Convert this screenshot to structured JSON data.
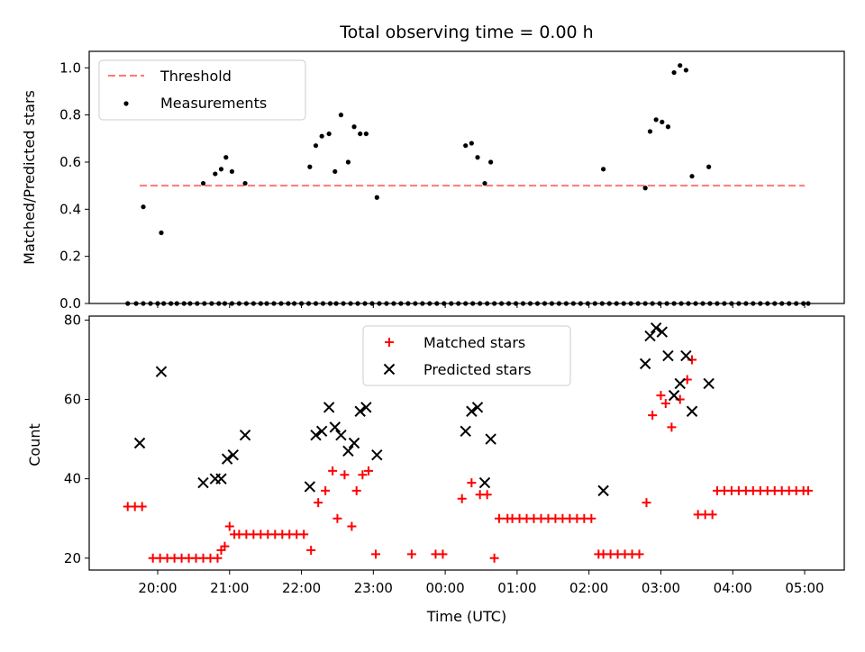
{
  "chart_data": [
    {
      "type": "scatter",
      "title": "Total observing time = 0.00 h",
      "xlabel": "",
      "ylabel": "Matched/Predicted stars",
      "ylim": [
        0,
        1.07
      ],
      "yticks": [
        "0.0",
        "0.2",
        "0.4",
        "0.6",
        "0.8",
        "1.0"
      ],
      "legend": {
        "placement": "top-left",
        "entries": [
          "Threshold",
          "Measurements"
        ]
      },
      "colors": {
        "threshold": "#ff7777",
        "measurements": "#000000"
      },
      "series": [
        {
          "name": "Threshold",
          "kind": "dashed-line",
          "x": [
            "19:45",
            "05:00"
          ],
          "y": [
            0.5,
            0.5
          ]
        },
        {
          "name": "Measurements",
          "kind": "points",
          "x": [
            "19:35",
            "19:42",
            "19:48",
            "19:54",
            "20:00",
            "20:05",
            "20:11",
            "20:16",
            "20:22",
            "20:27",
            "20:33",
            "20:39",
            "20:45",
            "20:51",
            "20:56",
            "21:02",
            "21:08",
            "21:14",
            "21:20",
            "21:26",
            "21:31",
            "21:37",
            "21:43",
            "21:49",
            "21:54",
            "22:00",
            "22:06",
            "22:12",
            "22:18",
            "22:24",
            "22:29",
            "22:35",
            "22:41",
            "22:47",
            "22:53",
            "22:59",
            "23:05",
            "23:11",
            "23:17",
            "23:23",
            "23:29",
            "23:35",
            "23:41",
            "23:47",
            "23:53",
            "23:59",
            "00:05",
            "00:11",
            "00:17",
            "00:23",
            "00:29",
            "00:35",
            "00:41",
            "00:47",
            "00:53",
            "00:59",
            "01:05",
            "01:11",
            "01:17",
            "01:23",
            "01:29",
            "01:35",
            "01:41",
            "01:47",
            "01:53",
            "01:59",
            "02:05",
            "02:11",
            "02:17",
            "02:23",
            "02:29",
            "02:35",
            "02:41",
            "02:47",
            "02:53",
            "02:59",
            "03:05",
            "03:11",
            "03:17",
            "03:23",
            "03:29",
            "03:35",
            "03:41",
            "03:47",
            "03:53",
            "03:59",
            "04:05",
            "04:11",
            "04:17",
            "04:23",
            "04:29",
            "04:35",
            "04:41",
            "04:47",
            "04:53",
            "04:59",
            "05:03",
            "19:48",
            "20:03",
            "20:38",
            "20:48",
            "20:53",
            "20:57",
            "21:02",
            "21:13",
            "22:07",
            "22:12",
            "22:17",
            "22:23",
            "22:28",
            "22:33",
            "22:39",
            "22:44",
            "22:49",
            "22:54",
            "23:03",
            "00:17",
            "00:22",
            "00:27",
            "00:33",
            "00:38",
            "02:12",
            "02:47",
            "02:51",
            "02:56",
            "03:01",
            "03:06",
            "03:11",
            "03:16",
            "03:21",
            "03:26",
            "03:40"
          ],
          "y": [
            0,
            0,
            0,
            0,
            0,
            0,
            0,
            0,
            0,
            0,
            0,
            0,
            0,
            0,
            0,
            0,
            0,
            0,
            0,
            0,
            0,
            0,
            0,
            0,
            0,
            0,
            0,
            0,
            0,
            0,
            0,
            0,
            0,
            0,
            0,
            0,
            0,
            0,
            0,
            0,
            0,
            0,
            0,
            0,
            0,
            0,
            0,
            0,
            0,
            0,
            0,
            0,
            0,
            0,
            0,
            0,
            0,
            0,
            0,
            0,
            0,
            0,
            0,
            0,
            0,
            0,
            0,
            0,
            0,
            0,
            0,
            0,
            0,
            0,
            0,
            0,
            0,
            0,
            0,
            0,
            0,
            0,
            0,
            0,
            0,
            0,
            0,
            0,
            0,
            0,
            0,
            0,
            0,
            0,
            0,
            0,
            0,
            0.41,
            0.3,
            0.51,
            0.55,
            0.57,
            0.62,
            0.56,
            0.51,
            0.58,
            0.67,
            0.71,
            0.72,
            0.56,
            0.8,
            0.6,
            0.75,
            0.72,
            0.72,
            0.45,
            0.67,
            0.68,
            0.62,
            0.51,
            0.6,
            0.57,
            0.49,
            0.73,
            0.78,
            0.77,
            0.75,
            0.98,
            1.01,
            0.99,
            0.54,
            0.58
          ]
        }
      ]
    },
    {
      "type": "scatter",
      "title": "",
      "xlabel": "Time (UTC)",
      "ylabel": "Count",
      "ylim": [
        17,
        81
      ],
      "yticks": [
        "20",
        "40",
        "60",
        "80"
      ],
      "xticks": [
        "20:00",
        "21:00",
        "22:00",
        "23:00",
        "00:00",
        "01:00",
        "02:00",
        "03:00",
        "04:00",
        "05:00"
      ],
      "legend": {
        "placement": "top-center",
        "entries": [
          "Matched stars",
          "Predicted stars"
        ]
      },
      "colors": {
        "matched": "#ff0000",
        "predicted": "#000000"
      },
      "series": [
        {
          "name": "Matched stars",
          "marker": "plus",
          "x": [
            "19:35",
            "19:41",
            "19:47",
            "19:56",
            "20:02",
            "20:08",
            "20:14",
            "20:20",
            "20:26",
            "20:32",
            "20:38",
            "20:44",
            "20:50",
            "20:53",
            "20:56",
            "21:00",
            "21:04",
            "21:08",
            "21:14",
            "21:20",
            "21:26",
            "21:32",
            "21:38",
            "21:44",
            "21:50",
            "21:56",
            "22:02",
            "22:08",
            "22:14",
            "22:20",
            "22:26",
            "22:30",
            "22:36",
            "22:42",
            "22:46",
            "22:51",
            "22:56",
            "23:02",
            "23:32",
            "23:52",
            "23:58",
            "00:14",
            "00:22",
            "00:29",
            "00:35",
            "00:41",
            "00:45",
            "00:52",
            "00:56",
            "01:02",
            "01:08",
            "01:14",
            "01:20",
            "01:26",
            "01:32",
            "01:38",
            "01:44",
            "01:50",
            "01:56",
            "02:02",
            "02:08",
            "02:12",
            "02:18",
            "02:24",
            "02:30",
            "02:36",
            "02:42",
            "02:48",
            "02:53",
            "03:00",
            "03:04",
            "03:09",
            "03:16",
            "03:22",
            "03:26",
            "03:31",
            "03:37",
            "03:43",
            "03:47",
            "03:53",
            "03:59",
            "04:05",
            "04:11",
            "04:17",
            "04:23",
            "04:29",
            "04:35",
            "04:41",
            "04:47",
            "04:53",
            "04:59",
            "05:03"
          ],
          "y": [
            33,
            33,
            33,
            20,
            20,
            20,
            20,
            20,
            20,
            20,
            20,
            20,
            20,
            22,
            23,
            28,
            26,
            26,
            26,
            26,
            26,
            26,
            26,
            26,
            26,
            26,
            26,
            22,
            34,
            37,
            42,
            30,
            41,
            28,
            37,
            41,
            42,
            21,
            21,
            21,
            21,
            35,
            39,
            36,
            36,
            20,
            30,
            30,
            30,
            30,
            30,
            30,
            30,
            30,
            30,
            30,
            30,
            30,
            30,
            30,
            21,
            21,
            21,
            21,
            21,
            21,
            21,
            34,
            56,
            61,
            59,
            53,
            60,
            65,
            70,
            31,
            31,
            31,
            37,
            37,
            37,
            37,
            37,
            37,
            37,
            37,
            37,
            37,
            37,
            37,
            37,
            37
          ]
        },
        {
          "name": "Predicted stars",
          "marker": "x",
          "x": [
            "19:45",
            "20:03",
            "20:38",
            "20:48",
            "20:53",
            "20:58",
            "21:03",
            "21:13",
            "22:07",
            "22:12",
            "22:17",
            "22:23",
            "22:28",
            "22:33",
            "22:39",
            "22:44",
            "22:49",
            "22:54",
            "23:03",
            "00:17",
            "00:22",
            "00:27",
            "00:33",
            "00:38",
            "02:12",
            "02:47",
            "02:51",
            "02:56",
            "03:01",
            "03:06",
            "03:11",
            "03:16",
            "03:21",
            "03:26",
            "03:40"
          ],
          "y": [
            49,
            67,
            39,
            40,
            40,
            45,
            46,
            51,
            38,
            51,
            52,
            58,
            53,
            51,
            47,
            49,
            57,
            58,
            46,
            52,
            57,
            58,
            39,
            50,
            37,
            69,
            76,
            78,
            77,
            71,
            61,
            64,
            71,
            57,
            64
          ]
        }
      ]
    }
  ]
}
